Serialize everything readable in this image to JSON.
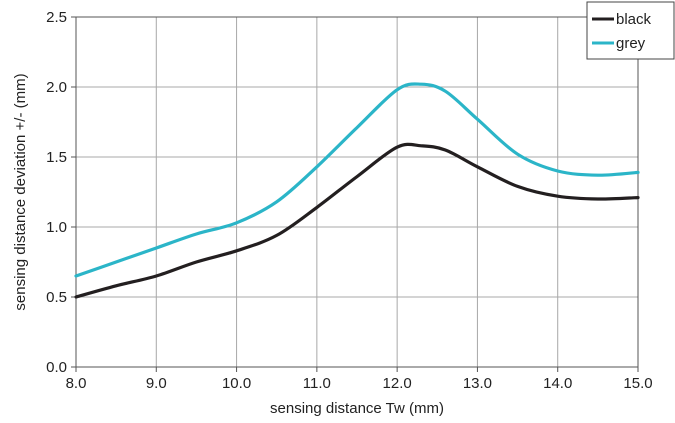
{
  "chart_data": {
    "type": "line",
    "title": "",
    "xlabel": "sensing distance Tw (mm)",
    "ylabel": "sensing distance deviation +/- (mm)",
    "xlim": [
      8.0,
      15.0
    ],
    "ylim": [
      0.0,
      2.5
    ],
    "x_ticks": [
      "8.0",
      "9.0",
      "10.0",
      "11.0",
      "12.0",
      "13.0",
      "14.0",
      "15.0"
    ],
    "y_ticks": [
      "0.0",
      "0.5",
      "1.0",
      "1.5",
      "2.0",
      "2.5"
    ],
    "grid": true,
    "legend_position": "top-right",
    "series": [
      {
        "name": "black",
        "color": "#231f20",
        "x": [
          8.0,
          8.5,
          9.0,
          9.5,
          10.0,
          10.5,
          11.0,
          11.5,
          12.0,
          12.3,
          12.6,
          13.0,
          13.5,
          14.0,
          14.5,
          15.0
        ],
        "y": [
          0.5,
          0.58,
          0.65,
          0.75,
          0.83,
          0.94,
          1.14,
          1.36,
          1.57,
          1.58,
          1.55,
          1.43,
          1.29,
          1.22,
          1.2,
          1.21
        ]
      },
      {
        "name": "grey",
        "color": "#2bb5c8",
        "x": [
          8.0,
          8.5,
          9.0,
          9.5,
          10.0,
          10.5,
          11.0,
          11.5,
          12.0,
          12.3,
          12.6,
          13.0,
          13.5,
          14.0,
          14.5,
          15.0
        ],
        "y": [
          0.65,
          0.75,
          0.85,
          0.95,
          1.03,
          1.18,
          1.43,
          1.71,
          1.98,
          2.02,
          1.97,
          1.77,
          1.52,
          1.4,
          1.37,
          1.39
        ]
      }
    ]
  }
}
